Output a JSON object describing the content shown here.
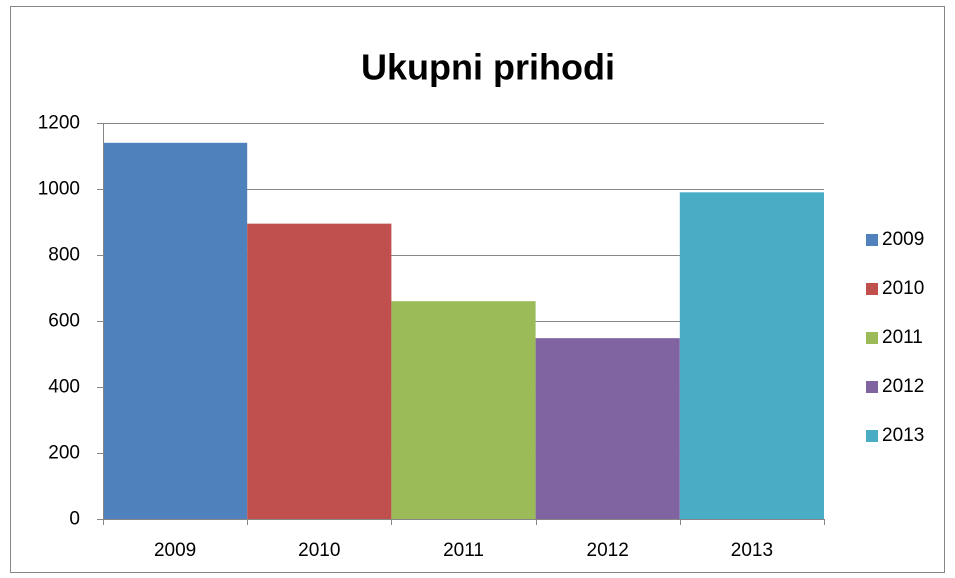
{
  "chart_data": {
    "type": "bar",
    "title": "Ukupni prihodi",
    "categories": [
      "2009",
      "2010",
      "2011",
      "2012",
      "2013"
    ],
    "values": [
      1140,
      895,
      660,
      548,
      990
    ],
    "colors": [
      "#4f81bd",
      "#c0504d",
      "#9bbb59",
      "#8064a2",
      "#4bacc6"
    ],
    "ylim": [
      0,
      1200
    ],
    "yticks": [
      0,
      200,
      400,
      600,
      800,
      1000,
      1200
    ],
    "grid": true,
    "legend": "right"
  }
}
